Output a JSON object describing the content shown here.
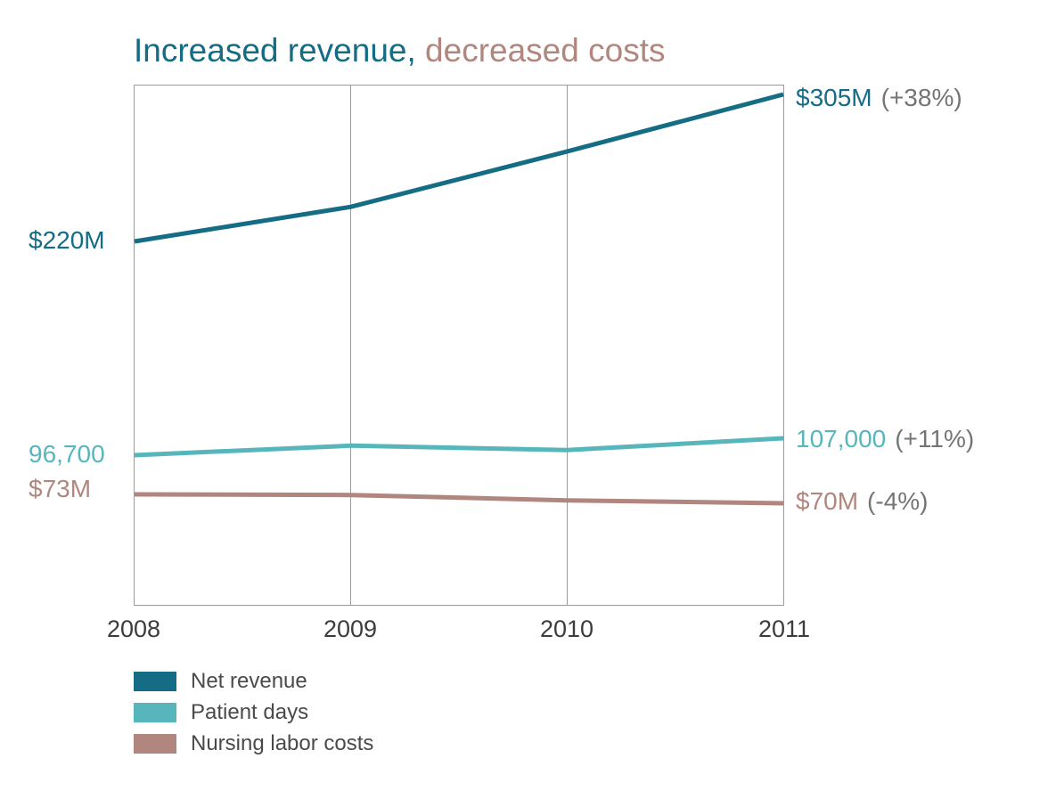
{
  "title": {
    "part1": "Increased revenue, ",
    "part2": "decreased costs"
  },
  "colors": {
    "net_revenue": "#156c85",
    "patient_days": "#57b6bc",
    "nursing_costs": "#b1867e",
    "change_text": "#757575",
    "axis_text": "#3c3c3c",
    "grid": "#9b9b9b"
  },
  "chart_data": {
    "type": "line",
    "title": "Increased revenue, decreased costs",
    "categories": [
      "2008",
      "2009",
      "2010",
      "2011"
    ],
    "grid": "vertical-only",
    "legend_position": "bottom-left",
    "series": [
      {
        "name": "Net revenue",
        "values": [
          220,
          240,
          272,
          305
        ],
        "color": "#156c85",
        "start_label": "$220M",
        "end_label": "$305M",
        "end_change": "(+38%)"
      },
      {
        "name": "Patient days",
        "values": [
          96700,
          102500,
          99800,
          107000
        ],
        "color": "#57b6bc",
        "start_label": "96,700",
        "end_label": "107,000",
        "end_change": "(+11%)"
      },
      {
        "name": "Nursing labor costs",
        "values": [
          73,
          72.8,
          71,
          70
        ],
        "color": "#b1867e",
        "start_label": "$73M",
        "end_label": "$70M",
        "end_change": "(-4%)"
      }
    ]
  }
}
